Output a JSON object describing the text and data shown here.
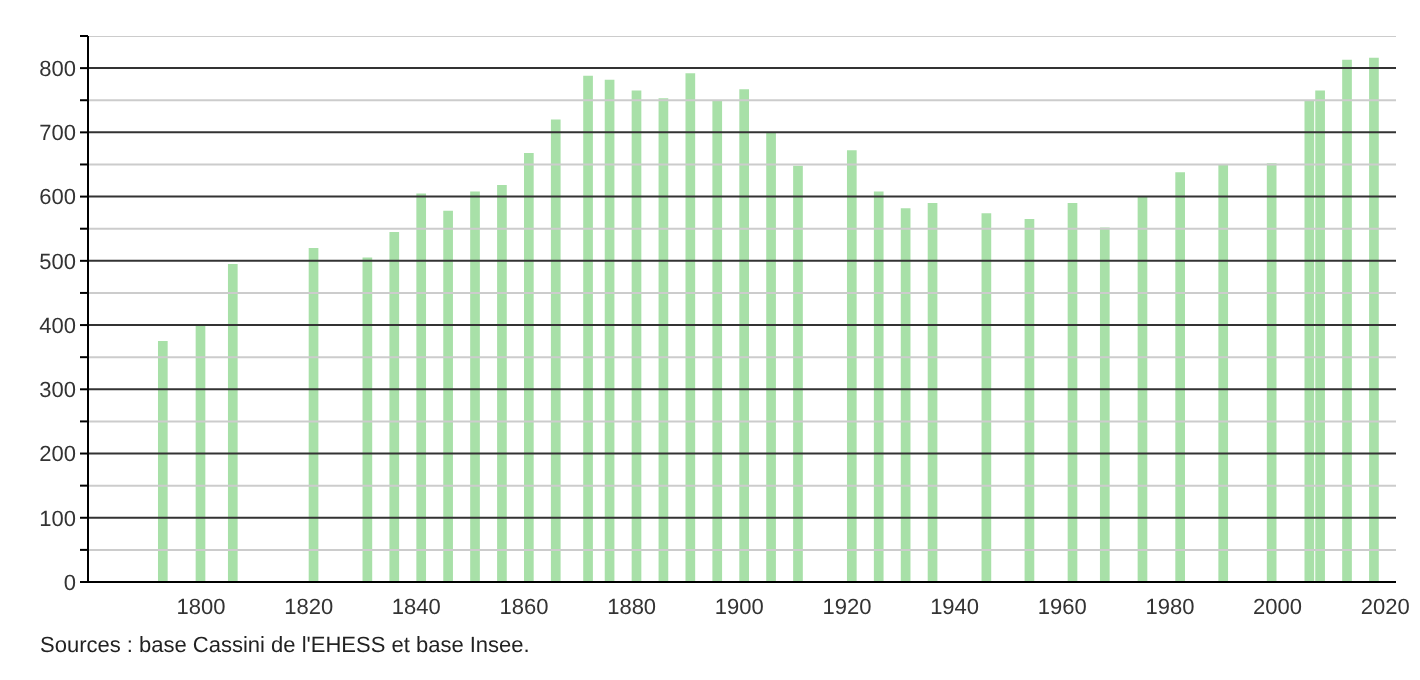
{
  "chart_data": {
    "type": "bar",
    "x": [
      1793,
      1800,
      1806,
      1821,
      1831,
      1836,
      1841,
      1846,
      1851,
      1856,
      1861,
      1866,
      1872,
      1876,
      1881,
      1886,
      1891,
      1896,
      1901,
      1906,
      1911,
      1921,
      1926,
      1931,
      1936,
      1946,
      1954,
      1962,
      1968,
      1975,
      1982,
      1990,
      1999,
      2006,
      2008,
      2013,
      2018
    ],
    "values": [
      375,
      400,
      495,
      520,
      505,
      545,
      605,
      578,
      608,
      618,
      668,
      720,
      788,
      782,
      765,
      753,
      792,
      750,
      767,
      700,
      648,
      672,
      608,
      582,
      590,
      574,
      565,
      590,
      552,
      600,
      638,
      650,
      652,
      750,
      765,
      813,
      816
    ],
    "color": "#a8e0a8",
    "xlim": [
      1779,
      2022
    ],
    "xticks": [
      1800,
      1820,
      1840,
      1860,
      1880,
      1900,
      1920,
      1940,
      1960,
      1980,
      2000,
      2020
    ],
    "ylim": [
      0,
      850
    ],
    "yticks": [
      0,
      {
        "value": 50,
        "label": null
      },
      100,
      {
        "value": 150,
        "label": null
      },
      200,
      {
        "value": 250,
        "label": null
      },
      300,
      {
        "value": 350,
        "label": null
      },
      400,
      {
        "value": 450,
        "label": null
      },
      500,
      {
        "value": 550,
        "label": null
      },
      600,
      {
        "value": 650,
        "label": null
      },
      700,
      {
        "value": 750,
        "label": null
      },
      800,
      {
        "value": 850,
        "label": null
      }
    ],
    "grid": "y",
    "annotations": [
      "Sources : base Cassini de l'EHESS et base Insee."
    ]
  }
}
